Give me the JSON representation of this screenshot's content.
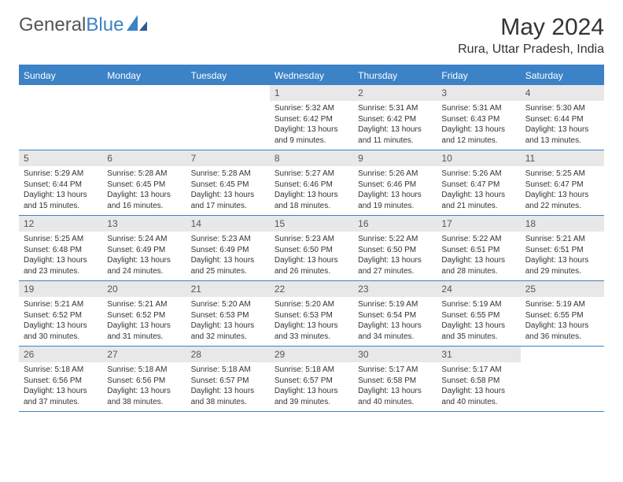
{
  "logo": {
    "text_general": "General",
    "text_blue": "Blue"
  },
  "title": "May 2024",
  "location": "Rura, Uttar Pradesh, India",
  "colors": {
    "header_bg": "#3b82c7",
    "daynum_bg": "#e8e8e8",
    "page_bg": "#ffffff",
    "text": "#333333",
    "header_text": "#ffffff"
  },
  "day_names": [
    "Sunday",
    "Monday",
    "Tuesday",
    "Wednesday",
    "Thursday",
    "Friday",
    "Saturday"
  ],
  "weeks": [
    [
      {
        "empty": true
      },
      {
        "empty": true
      },
      {
        "empty": true
      },
      {
        "n": "1",
        "sr": "5:32 AM",
        "ss": "6:42 PM",
        "dl": "13 hours and 9 minutes."
      },
      {
        "n": "2",
        "sr": "5:31 AM",
        "ss": "6:42 PM",
        "dl": "13 hours and 11 minutes."
      },
      {
        "n": "3",
        "sr": "5:31 AM",
        "ss": "6:43 PM",
        "dl": "13 hours and 12 minutes."
      },
      {
        "n": "4",
        "sr": "5:30 AM",
        "ss": "6:44 PM",
        "dl": "13 hours and 13 minutes."
      }
    ],
    [
      {
        "n": "5",
        "sr": "5:29 AM",
        "ss": "6:44 PM",
        "dl": "13 hours and 15 minutes."
      },
      {
        "n": "6",
        "sr": "5:28 AM",
        "ss": "6:45 PM",
        "dl": "13 hours and 16 minutes."
      },
      {
        "n": "7",
        "sr": "5:28 AM",
        "ss": "6:45 PM",
        "dl": "13 hours and 17 minutes."
      },
      {
        "n": "8",
        "sr": "5:27 AM",
        "ss": "6:46 PM",
        "dl": "13 hours and 18 minutes."
      },
      {
        "n": "9",
        "sr": "5:26 AM",
        "ss": "6:46 PM",
        "dl": "13 hours and 19 minutes."
      },
      {
        "n": "10",
        "sr": "5:26 AM",
        "ss": "6:47 PM",
        "dl": "13 hours and 21 minutes."
      },
      {
        "n": "11",
        "sr": "5:25 AM",
        "ss": "6:47 PM",
        "dl": "13 hours and 22 minutes."
      }
    ],
    [
      {
        "n": "12",
        "sr": "5:25 AM",
        "ss": "6:48 PM",
        "dl": "13 hours and 23 minutes."
      },
      {
        "n": "13",
        "sr": "5:24 AM",
        "ss": "6:49 PM",
        "dl": "13 hours and 24 minutes."
      },
      {
        "n": "14",
        "sr": "5:23 AM",
        "ss": "6:49 PM",
        "dl": "13 hours and 25 minutes."
      },
      {
        "n": "15",
        "sr": "5:23 AM",
        "ss": "6:50 PM",
        "dl": "13 hours and 26 minutes."
      },
      {
        "n": "16",
        "sr": "5:22 AM",
        "ss": "6:50 PM",
        "dl": "13 hours and 27 minutes."
      },
      {
        "n": "17",
        "sr": "5:22 AM",
        "ss": "6:51 PM",
        "dl": "13 hours and 28 minutes."
      },
      {
        "n": "18",
        "sr": "5:21 AM",
        "ss": "6:51 PM",
        "dl": "13 hours and 29 minutes."
      }
    ],
    [
      {
        "n": "19",
        "sr": "5:21 AM",
        "ss": "6:52 PM",
        "dl": "13 hours and 30 minutes."
      },
      {
        "n": "20",
        "sr": "5:21 AM",
        "ss": "6:52 PM",
        "dl": "13 hours and 31 minutes."
      },
      {
        "n": "21",
        "sr": "5:20 AM",
        "ss": "6:53 PM",
        "dl": "13 hours and 32 minutes."
      },
      {
        "n": "22",
        "sr": "5:20 AM",
        "ss": "6:53 PM",
        "dl": "13 hours and 33 minutes."
      },
      {
        "n": "23",
        "sr": "5:19 AM",
        "ss": "6:54 PM",
        "dl": "13 hours and 34 minutes."
      },
      {
        "n": "24",
        "sr": "5:19 AM",
        "ss": "6:55 PM",
        "dl": "13 hours and 35 minutes."
      },
      {
        "n": "25",
        "sr": "5:19 AM",
        "ss": "6:55 PM",
        "dl": "13 hours and 36 minutes."
      }
    ],
    [
      {
        "n": "26",
        "sr": "5:18 AM",
        "ss": "6:56 PM",
        "dl": "13 hours and 37 minutes."
      },
      {
        "n": "27",
        "sr": "5:18 AM",
        "ss": "6:56 PM",
        "dl": "13 hours and 38 minutes."
      },
      {
        "n": "28",
        "sr": "5:18 AM",
        "ss": "6:57 PM",
        "dl": "13 hours and 38 minutes."
      },
      {
        "n": "29",
        "sr": "5:18 AM",
        "ss": "6:57 PM",
        "dl": "13 hours and 39 minutes."
      },
      {
        "n": "30",
        "sr": "5:17 AM",
        "ss": "6:58 PM",
        "dl": "13 hours and 40 minutes."
      },
      {
        "n": "31",
        "sr": "5:17 AM",
        "ss": "6:58 PM",
        "dl": "13 hours and 40 minutes."
      },
      {
        "empty": true
      }
    ]
  ],
  "labels": {
    "sunrise": "Sunrise: ",
    "sunset": "Sunset: ",
    "daylight": "Daylight: "
  }
}
